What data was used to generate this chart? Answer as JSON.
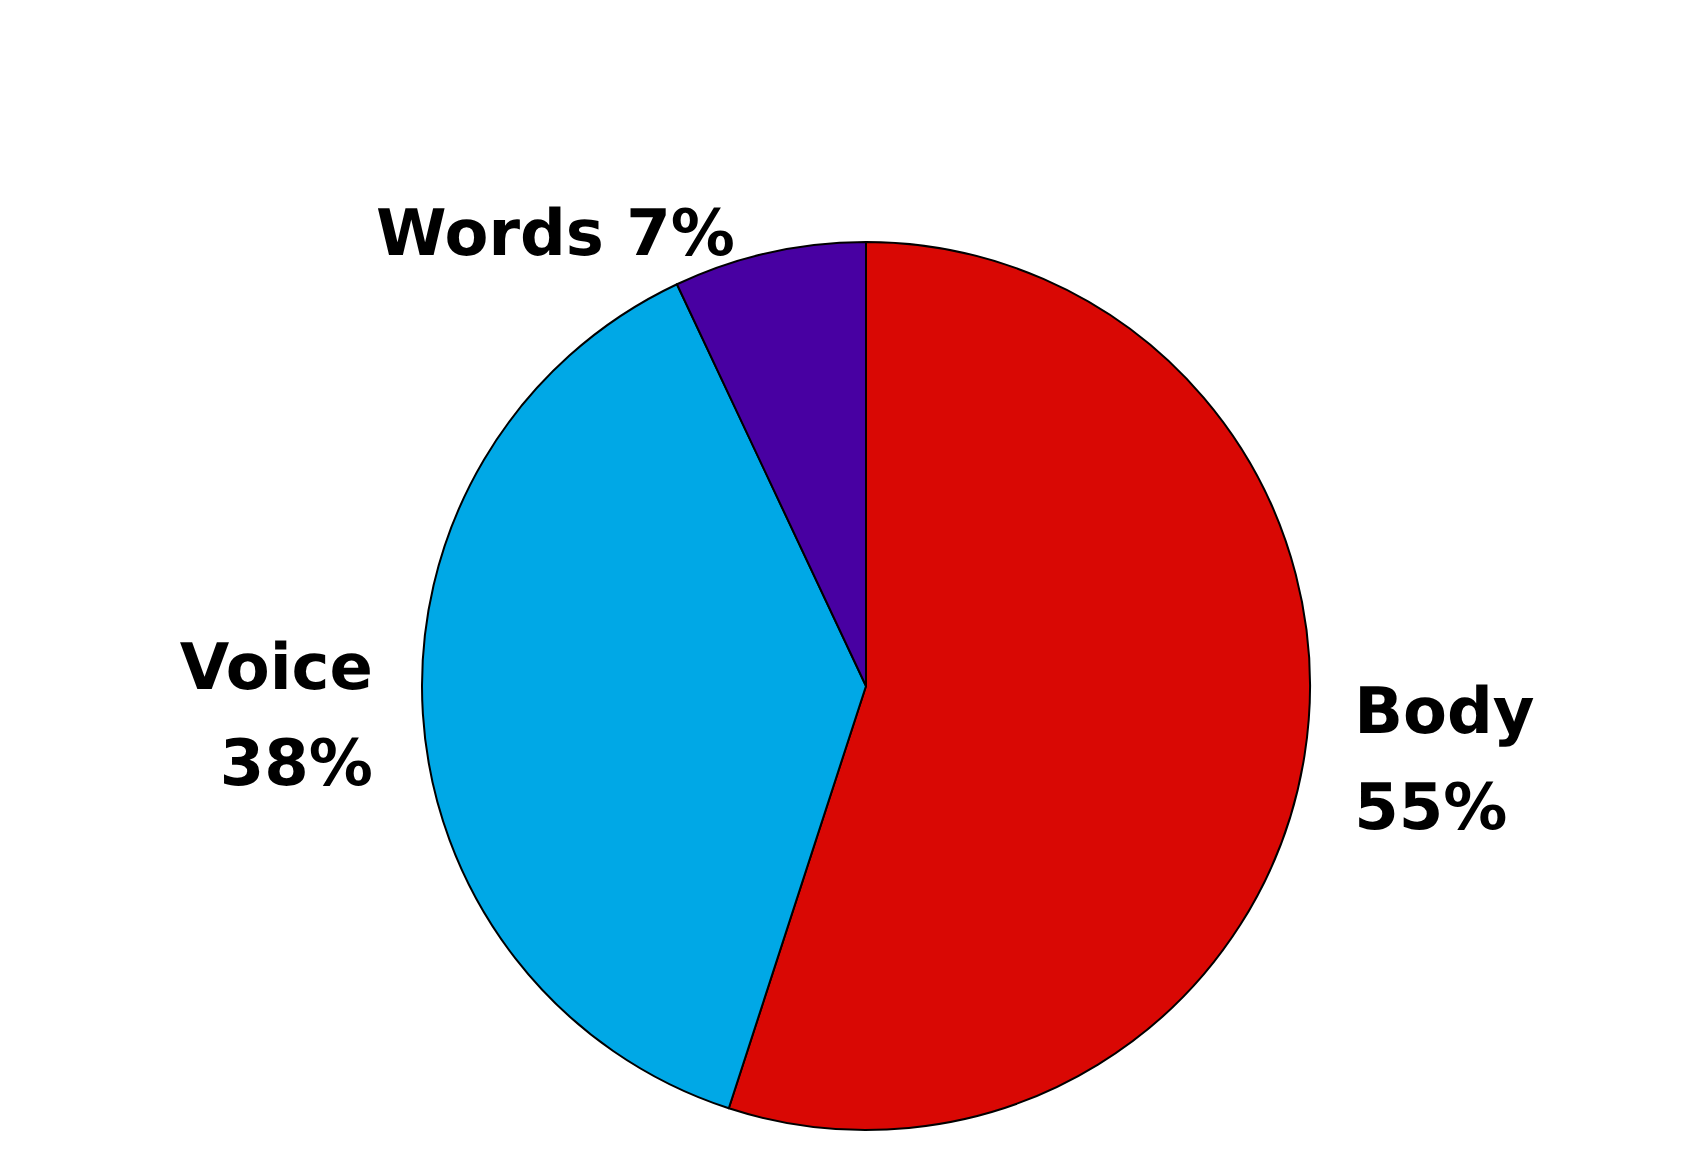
{
  "chart_data": {
    "type": "pie",
    "categories": [
      "Body",
      "Voice",
      "Words"
    ],
    "values": [
      55,
      38,
      7
    ],
    "colors": [
      "#d90804",
      "#00a8e6",
      "#4800a2"
    ],
    "value_labels": [
      "55%",
      "38%",
      "7%"
    ]
  }
}
